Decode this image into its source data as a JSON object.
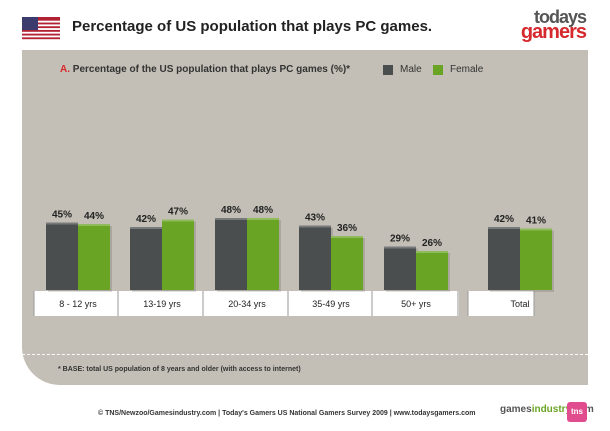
{
  "header": {
    "title": "Percentage of US population that plays PC games.",
    "brand_top": "todays",
    "brand_bottom": "gamers",
    "flag_icon": "us-flag-icon"
  },
  "chart_data": {
    "type": "bar",
    "title_marker": "A.",
    "title": "Percentage of the US population that plays PC games (%)*",
    "categories": [
      "8 - 12 yrs",
      "13-19 yrs",
      "20-34 yrs",
      "35-49 yrs",
      "50+ yrs",
      "Total"
    ],
    "series": [
      {
        "name": "Male",
        "values": [
          45,
          42,
          48,
          43,
          29,
          42
        ],
        "color": "#4a4e4f"
      },
      {
        "name": "Female",
        "values": [
          44,
          47,
          48,
          36,
          26,
          41
        ],
        "color": "#6aa425"
      }
    ],
    "value_suffix": "%",
    "legend": "top-right",
    "grid": false
  },
  "footnote": "* BASE: total US population of 8 years and older (with access to internet)",
  "credits": "© TNS/Newzoo/Gamesindustry.com | Today's Gamers US National Gamers Survey 2009 | www.todaysgamers.com",
  "partners": {
    "gi_a": "games",
    "gi_b": "industry",
    "gi_c": ".com",
    "tns": "tns"
  }
}
